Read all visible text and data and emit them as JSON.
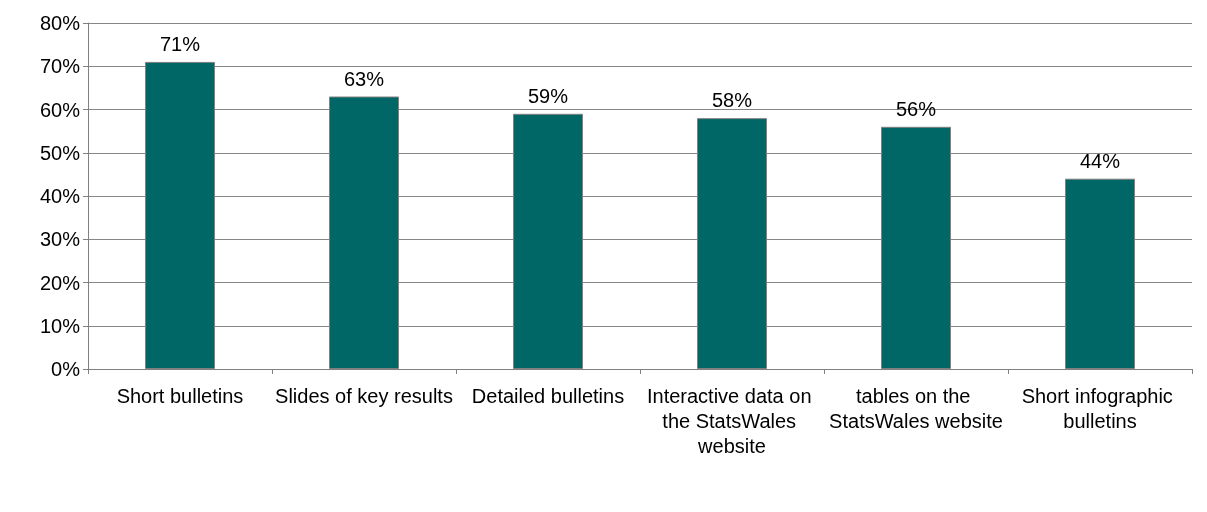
{
  "chart_data": {
    "type": "bar",
    "categories": [
      "Short bulletins",
      "Slides of key results",
      "Detailed bulletins",
      "Interactive data on the StatsWales website",
      "tables on the StatsWales website",
      "Short infographic bulletins"
    ],
    "values": [
      71,
      63,
      59,
      58,
      56,
      44
    ],
    "value_labels": [
      "71%",
      "63%",
      "59%",
      "58%",
      "56%",
      "44%"
    ],
    "color": "#006666",
    "ylim": [
      0,
      80
    ],
    "yticks": [
      {
        "value": 0,
        "label": "0%"
      },
      {
        "value": 10,
        "label": "10%"
      },
      {
        "value": 20,
        "label": "20%"
      },
      {
        "value": 30,
        "label": "30%"
      },
      {
        "value": 40,
        "label": "40%"
      },
      {
        "value": 50,
        "label": "50%"
      },
      {
        "value": 60,
        "label": "60%"
      },
      {
        "value": 70,
        "label": "70%"
      },
      {
        "value": 80,
        "label": "80%"
      }
    ],
    "grid": "y"
  }
}
